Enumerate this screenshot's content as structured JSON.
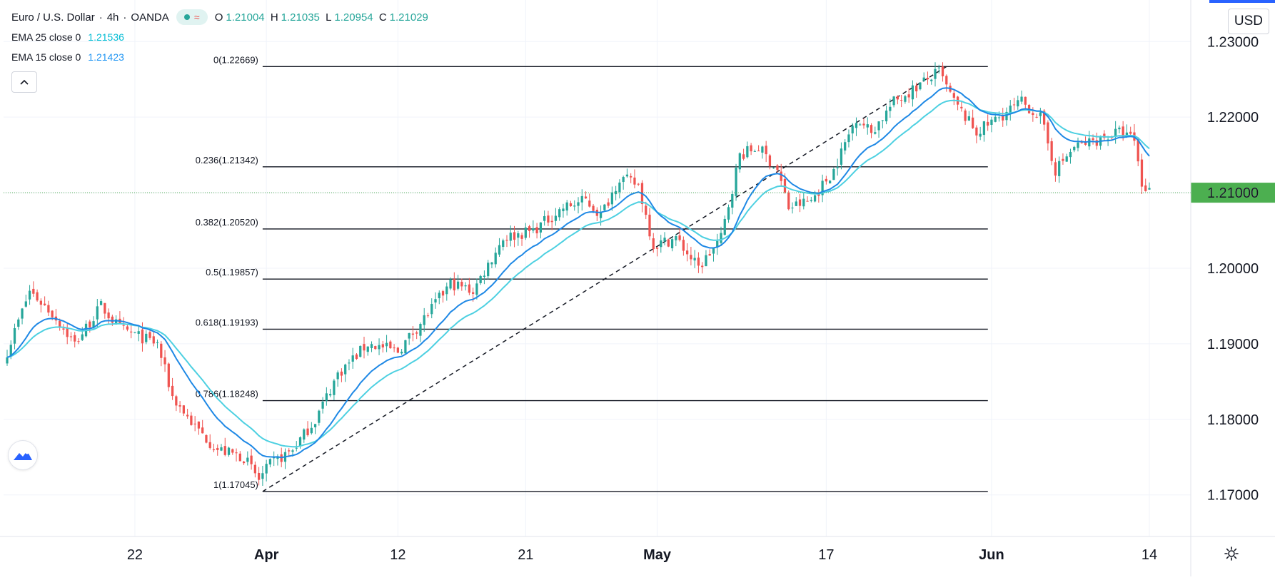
{
  "header": {
    "symbol": "Euro / U.S. Dollar",
    "separator": "·",
    "timeframe": "4h",
    "broker": "OANDA",
    "ohlc": {
      "o_label": "O",
      "o": "1.21004",
      "h_label": "H",
      "h": "1.21035",
      "l_label": "L",
      "l": "1.20954",
      "c_label": "C",
      "c": "1.21029"
    }
  },
  "indicators": [
    {
      "name": "EMA 25 close 0",
      "value": "1.21536",
      "color": "#00bcd4"
    },
    {
      "name": "EMA 15 close 0",
      "value": "1.21423",
      "color": "#2196f3"
    }
  ],
  "currency": "USD",
  "colors": {
    "up": "#26a69a",
    "down": "#ef5350",
    "ema25": "#4dd0e1",
    "ema15": "#1e88e5",
    "price_line": "#4caf50",
    "fib": "#131722",
    "grid": "#f0f3fa"
  },
  "chart_data": {
    "type": "candlestick",
    "title": "Euro / U.S. Dollar · 4h · OANDA",
    "ylim": [
      1.1645,
      1.2355
    ],
    "yticks": [
      {
        "value": 1.17,
        "label": "1.17000"
      },
      {
        "value": 1.18,
        "label": "1.18000"
      },
      {
        "value": 1.19,
        "label": "1.19000"
      },
      {
        "value": 1.2,
        "label": "1.20000"
      },
      {
        "value": 1.21,
        "label": "1.21000"
      },
      {
        "value": 1.22,
        "label": "1.22000"
      },
      {
        "value": 1.23,
        "label": "1.23000"
      }
    ],
    "xticks": [
      {
        "bar": 34,
        "label": "22",
        "bold": false
      },
      {
        "bar": 69,
        "label": "Apr",
        "bold": true
      },
      {
        "bar": 104,
        "label": "12",
        "bold": false
      },
      {
        "bar": 138,
        "label": "21",
        "bold": false
      },
      {
        "bar": 173,
        "label": "May",
        "bold": true
      },
      {
        "bar": 218,
        "label": "17",
        "bold": false
      },
      {
        "bar": 262,
        "label": "Jun",
        "bold": true
      },
      {
        "bar": 304,
        "label": "14",
        "bold": false
      }
    ],
    "bar_count": 305,
    "price_line": {
      "value": 1.21,
      "label": "1.21000"
    },
    "waypoints": [
      [
        0,
        1.189
      ],
      [
        6,
        1.197
      ],
      [
        12,
        1.194
      ],
      [
        18,
        1.19
      ],
      [
        25,
        1.195
      ],
      [
        30,
        1.192
      ],
      [
        40,
        1.19
      ],
      [
        44,
        1.183
      ],
      [
        50,
        1.179
      ],
      [
        56,
        1.176
      ],
      [
        63,
        1.175
      ],
      [
        67,
        1.172
      ],
      [
        70,
        1.174
      ],
      [
        76,
        1.176
      ],
      [
        82,
        1.18
      ],
      [
        88,
        1.186
      ],
      [
        96,
        1.19
      ],
      [
        104,
        1.189
      ],
      [
        112,
        1.194
      ],
      [
        118,
        1.198
      ],
      [
        124,
        1.197
      ],
      [
        132,
        1.204
      ],
      [
        140,
        1.205
      ],
      [
        148,
        1.208
      ],
      [
        154,
        1.209
      ],
      [
        158,
        1.207
      ],
      [
        163,
        1.212
      ],
      [
        168,
        1.211
      ],
      [
        172,
        1.203
      ],
      [
        178,
        1.204
      ],
      [
        184,
        1.2
      ],
      [
        190,
        1.204
      ],
      [
        195,
        1.215
      ],
      [
        200,
        1.216
      ],
      [
        205,
        1.213
      ],
      [
        208,
        1.208
      ],
      [
        214,
        1.209
      ],
      [
        220,
        1.213
      ],
      [
        226,
        1.22
      ],
      [
        230,
        1.218
      ],
      [
        236,
        1.222
      ],
      [
        242,
        1.224
      ],
      [
        248,
        1.226
      ],
      [
        252,
        1.222
      ],
      [
        258,
        1.218
      ],
      [
        264,
        1.22
      ],
      [
        270,
        1.222
      ],
      [
        275,
        1.22
      ],
      [
        279,
        1.213
      ],
      [
        284,
        1.216
      ],
      [
        290,
        1.217
      ],
      [
        296,
        1.218
      ],
      [
        300,
        1.217
      ],
      [
        302,
        1.211
      ],
      [
        304,
        1.2103
      ]
    ],
    "ema": [
      {
        "name": "EMA 25 close 0",
        "period": 25,
        "last": 1.21536
      },
      {
        "name": "EMA 15 close 0",
        "period": 15,
        "last": 1.21423
      }
    ],
    "fibonacci": {
      "from_bar": 68,
      "to_bar": 250,
      "levels": [
        {
          "label": "0(1.22669)",
          "value": 1.22669
        },
        {
          "label": "0.236(1.21342)",
          "value": 1.21342
        },
        {
          "label": "0.382(1.20520)",
          "value": 1.2052
        },
        {
          "label": "0.5(1.19857)",
          "value": 1.19857
        },
        {
          "label": "0.618(1.19193)",
          "value": 1.19193
        },
        {
          "label": "0.786(1.18248)",
          "value": 1.18248
        },
        {
          "label": "1(1.17045)",
          "value": 1.17045
        }
      ],
      "trend_line": {
        "from": [
          68,
          1.17045
        ],
        "to": [
          250,
          1.22669
        ]
      }
    }
  }
}
